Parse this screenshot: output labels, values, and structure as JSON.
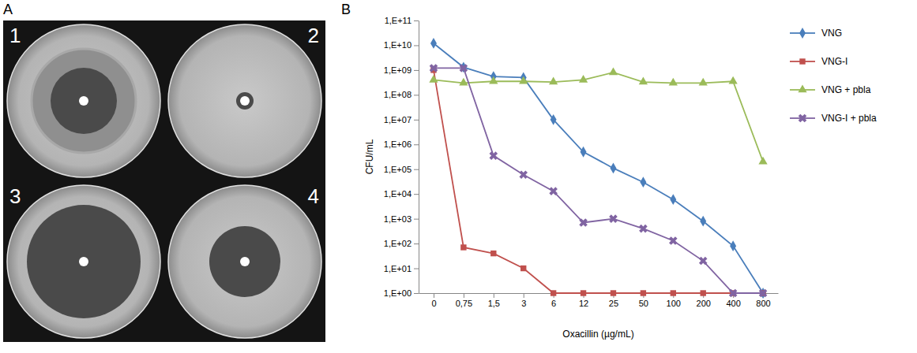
{
  "panel_a": {
    "letter": "A",
    "plate_labels": [
      "1",
      "2",
      "3",
      "4"
    ]
  },
  "chart_data": {
    "type": "line",
    "panel_letter": "B",
    "x_label": "Oxacillin (µg/mL)",
    "y_label": "CFU/mL",
    "categories": [
      "0",
      "0,75",
      "1,5",
      "3",
      "6",
      "12",
      "25",
      "50",
      "100",
      "200",
      "400",
      "800"
    ],
    "log": "y",
    "ylim": [
      1,
      100000000000
    ],
    "yticks": [
      {
        "value": 1,
        "label": "1,E+00"
      },
      {
        "value": 10,
        "label": "1,E+01"
      },
      {
        "value": 100,
        "label": "1,E+02"
      },
      {
        "value": 1000,
        "label": "1,E+03"
      },
      {
        "value": 10000,
        "label": "1,E+04"
      },
      {
        "value": 100000,
        "label": "1,E+05"
      },
      {
        "value": 1000000,
        "label": "1,E+06"
      },
      {
        "value": 10000000,
        "label": "1,E+07"
      },
      {
        "value": 100000000,
        "label": "1,E+08"
      },
      {
        "value": 1000000000,
        "label": "1,E+09"
      },
      {
        "value": 10000000000,
        "label": "1,E+10"
      },
      {
        "value": 100000000000,
        "label": "1,E+11"
      }
    ],
    "grid": false,
    "legend": "right",
    "series": [
      {
        "name": "VNG",
        "color": "#4a7ebb",
        "marker": "diamond",
        "values": [
          12000000000,
          1300000000,
          550000000,
          500000000,
          10000000,
          500000,
          110000,
          30000,
          6000,
          800,
          80,
          1
        ]
      },
      {
        "name": "VNG-I",
        "color": "#c0504d",
        "marker": "square",
        "values": [
          1000000000,
          70,
          40,
          10,
          1,
          1,
          1,
          1,
          1,
          1,
          1,
          1
        ]
      },
      {
        "name": "VNG + pbla",
        "color": "#9bbb59",
        "marker": "triangle",
        "values": [
          400000000,
          300000000,
          350000000,
          350000000,
          330000000,
          400000000,
          800000000,
          330000000,
          300000000,
          300000000,
          350000000,
          200000
        ]
      },
      {
        "name": "VNG-I + pbla",
        "color": "#8064a2",
        "marker": "x",
        "values": [
          1200000000,
          1200000000,
          350000,
          60000,
          13000,
          700,
          1000,
          400,
          130,
          20,
          1,
          1
        ]
      }
    ]
  }
}
